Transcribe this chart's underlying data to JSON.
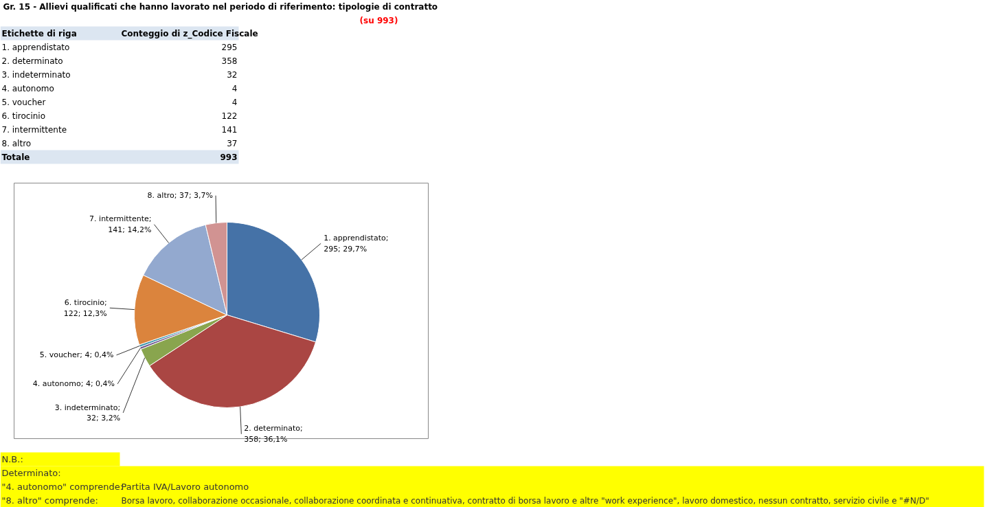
{
  "chart_data": [
    {
      "type": "other",
      "title": "Gr. 15 - Allievi qualificati che hanno lavorato nel periodo di riferimento: tipologie di contratto",
      "subtitle": "(su 993)",
      "categories": [
        "1. apprendistato",
        "2. determinato",
        "3. indeterminato",
        "4. autonomo",
        "5. voucher",
        "6. tirocinio",
        "7. intermittente",
        "8. altro"
      ],
      "values": [
        295,
        358,
        32,
        4,
        4,
        122,
        141,
        37
      ],
      "data_labels": true,
      "annotations": [
        "Etichette di riga",
        "Conteggio di z_Codice Fiscale",
        "Totale",
        "993"
      ]
    },
    {
      "type": "pie",
      "categories": [
        null,
        null,
        null,
        null,
        null,
        null,
        null,
        null
      ],
      "values": [
        295,
        358,
        32,
        4,
        4,
        122,
        141,
        37
      ],
      "colors": [
        "#4572a7",
        "#aa4643",
        "#89a54e",
        "#71588f",
        "#4198af",
        "#db843d",
        "#93a9cf",
        "#d19392"
      ],
      "value_labels": [
        "1. apprendistato; 295; 29,7%",
        "2. determinato; 358; 36,1%",
        "3. indeterminato; 32; 3,2%",
        "4. autonomo; 4; 0,4%",
        "5. voucher; 4; 0,4%",
        "6. tirocinio; 122; 12,3%",
        "7. intermittente; 141; 14,2%",
        "8. altro; 37; 3,7%"
      ],
      "annotations": [
        "N.B.:",
        "Determinato:",
        "\"4. autonomo\" comprende:",
        "Partita IVA/Lavoro autonomo",
        "\"8. altro\" comprende:",
        "Borsa lavoro, collaborazione occasionale, collaborazione coordinata e continuativa, contratto di borsa lavoro e altre \"work experience\", lavoro domestico, nessun contratto, servizio civile  e \"#N/D\""
      ]
    }
  ]
}
